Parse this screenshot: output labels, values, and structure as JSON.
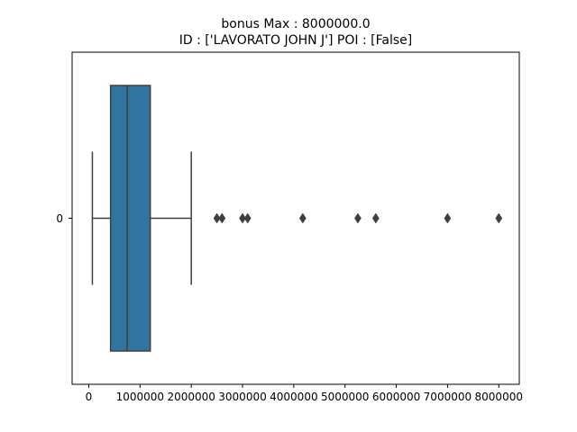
{
  "chart_data": {
    "type": "box",
    "orientation": "horizontal",
    "title": "bonus  Max : 8000000.0",
    "subtitle": "ID : ['LAVORATO JOHN J']  POI : [False]",
    "xlabel": "",
    "ylabel": "",
    "category": "0",
    "xlim": [
      -325000,
      8400000
    ],
    "xticks": [
      0,
      1000000,
      2000000,
      3000000,
      4000000,
      5000000,
      6000000,
      7000000,
      8000000
    ],
    "xtick_labels": [
      "0",
      "1000000",
      "2000000",
      "3000000",
      "4000000",
      "5000000",
      "6000000",
      "7000000",
      "8000000"
    ],
    "box": {
      "whisker_low": 70000,
      "q1": 425000,
      "median": 750000,
      "q3": 1200000,
      "whisker_high": 2000000
    },
    "outliers": [
      2500000,
      2600000,
      3000000,
      3100000,
      4175000,
      5249999,
      5600000,
      7000000,
      8000000
    ],
    "box_color": "#3274a1",
    "line_color": "#3f3f3f",
    "grid": false,
    "legend": "none"
  }
}
